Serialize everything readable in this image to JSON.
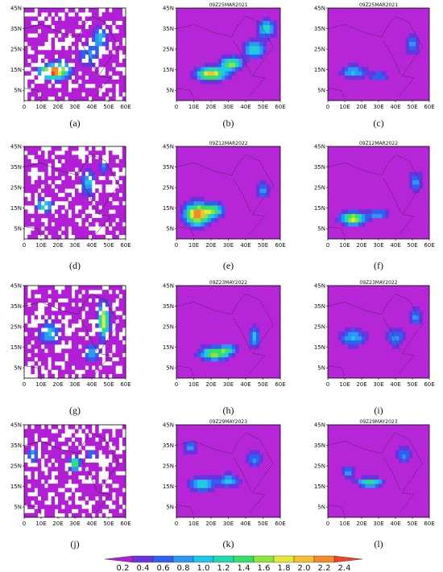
{
  "chart_data": {
    "type": "heatmap",
    "x_ticks": [
      "0",
      "10E",
      "20E",
      "30E",
      "40E",
      "50E",
      "60E"
    ],
    "y_ticks": [
      "5N",
      "15N",
      "25N",
      "35N",
      "45N"
    ],
    "xlim": [
      0,
      60
    ],
    "ylim": [
      0,
      45
    ],
    "colorbar": {
      "ticks": [
        "0.2",
        "0.4",
        "0.6",
        "0.8",
        "1.0",
        "1.2",
        "1.4",
        "1.6",
        "1.8",
        "2.0",
        "2.2",
        "2.4"
      ],
      "colors": [
        "#b21ed6",
        "#6a33e0",
        "#2f60f0",
        "#2c97f4",
        "#21c7e8",
        "#1fdcb0",
        "#34e065",
        "#8fe63b",
        "#e6e838",
        "#f4c12e",
        "#f48a2a",
        "#ee4428"
      ]
    },
    "panels": [
      {
        "label": "(a)",
        "title": "",
        "style": "obs",
        "blobs": [
          [
            15,
            14,
            6,
            3,
            9
          ],
          [
            22,
            15,
            6,
            4,
            6
          ],
          [
            45,
            30,
            4,
            6,
            4
          ],
          [
            38,
            22,
            5,
            6,
            3
          ]
        ]
      },
      {
        "label": "(b)",
        "title": "09Z25MAR2021",
        "style": "model",
        "blobs": [
          [
            20,
            13,
            8,
            3,
            9
          ],
          [
            32,
            18,
            6,
            3,
            7
          ],
          [
            45,
            25,
            6,
            4,
            5
          ],
          [
            52,
            35,
            5,
            4,
            5
          ]
        ]
      },
      {
        "label": "(c)",
        "title": "09Z25MAR2021",
        "style": "model",
        "blobs": [
          [
            15,
            14,
            7,
            3,
            4
          ],
          [
            50,
            27,
            4,
            5,
            3
          ],
          [
            30,
            12,
            5,
            2,
            3
          ]
        ]
      },
      {
        "label": "(d)",
        "title": "",
        "style": "obs",
        "blobs": [
          [
            12,
            16,
            5,
            3,
            5
          ],
          [
            38,
            27,
            4,
            6,
            4
          ],
          [
            47,
            35,
            3,
            3,
            3
          ]
        ]
      },
      {
        "label": "(e)",
        "title": "09Z12MAR2022",
        "style": "model",
        "blobs": [
          [
            12,
            12,
            7,
            5,
            10
          ],
          [
            22,
            14,
            5,
            3,
            6
          ],
          [
            50,
            24,
            4,
            4,
            3
          ]
        ]
      },
      {
        "label": "(f)",
        "title": "09Z12MAR2022",
        "style": "model",
        "blobs": [
          [
            15,
            10,
            7,
            3,
            8
          ],
          [
            30,
            12,
            5,
            2,
            4
          ],
          [
            52,
            28,
            4,
            5,
            3
          ]
        ]
      },
      {
        "label": "(g)",
        "title": "",
        "style": "obs",
        "blobs": [
          [
            47,
            28,
            3,
            8,
            8
          ],
          [
            15,
            22,
            6,
            5,
            4
          ],
          [
            40,
            12,
            4,
            4,
            4
          ]
        ]
      },
      {
        "label": "(h)",
        "title": "09Z23MAY2022",
        "style": "model",
        "blobs": [
          [
            22,
            12,
            8,
            3,
            7
          ],
          [
            45,
            20,
            3,
            5,
            4
          ],
          [
            30,
            14,
            5,
            2,
            4
          ]
        ]
      },
      {
        "label": "(i)",
        "title": "09Z23MAY2022",
        "style": "model",
        "blobs": [
          [
            15,
            20,
            7,
            4,
            4
          ],
          [
            40,
            20,
            5,
            5,
            3
          ],
          [
            52,
            30,
            4,
            4,
            3
          ]
        ]
      },
      {
        "label": "(j)",
        "title": "",
        "style": "obs",
        "blobs": [
          [
            30,
            26,
            3,
            3,
            7
          ],
          [
            5,
            30,
            3,
            3,
            4
          ],
          [
            40,
            30,
            3,
            3,
            3
          ]
        ]
      },
      {
        "label": "(k)",
        "title": "09Z29MAY2023",
        "style": "model",
        "blobs": [
          [
            15,
            16,
            7,
            3,
            5
          ],
          [
            30,
            18,
            6,
            3,
            4
          ],
          [
            8,
            34,
            4,
            3,
            3
          ],
          [
            45,
            28,
            4,
            4,
            3
          ]
        ]
      },
      {
        "label": "(l)",
        "title": "09Z29MAY2023",
        "style": "model",
        "blobs": [
          [
            25,
            17,
            7,
            2,
            6
          ],
          [
            12,
            22,
            4,
            3,
            3
          ],
          [
            45,
            30,
            4,
            4,
            3
          ]
        ]
      }
    ]
  }
}
